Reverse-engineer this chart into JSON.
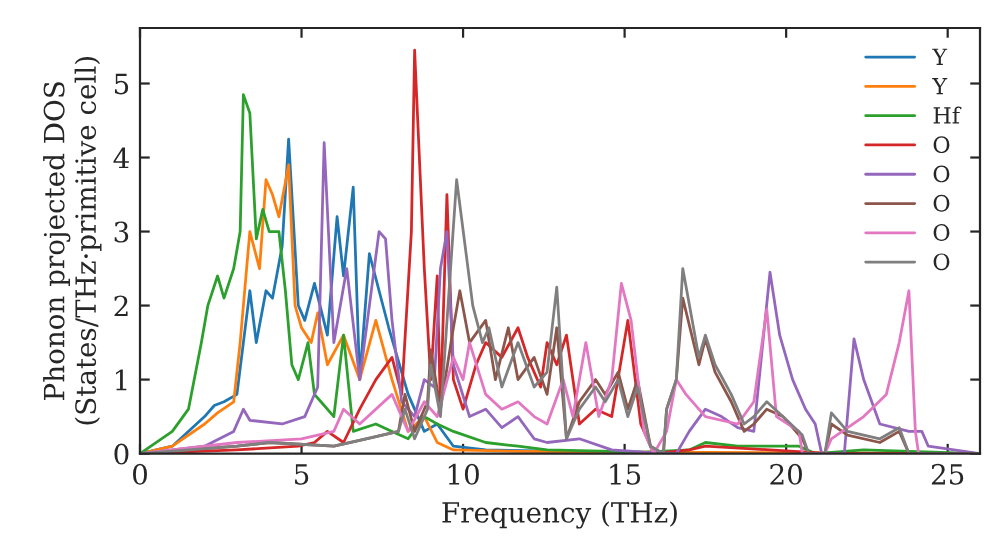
{
  "chart_data": {
    "type": "line",
    "xlabel": "Frequency (THz)",
    "ylabel": "Phonon projected DOS\n(States/THz·primitive cell)",
    "xlim": [
      0,
      26
    ],
    "ylim": [
      0,
      5.75
    ],
    "xticks": [
      0,
      5,
      10,
      15,
      20,
      25
    ],
    "yticks": [
      0,
      1,
      2,
      3,
      4,
      5
    ],
    "grid": false,
    "legend": "top right",
    "marker": "none",
    "line_style": "solid",
    "series": [
      {
        "name": "Y",
        "color": "#1f77b4",
        "x": [
          0,
          1,
          2,
          2.3,
          2.6,
          3,
          3.2,
          3.4,
          3.6,
          3.9,
          4.1,
          4.4,
          4.6,
          4.9,
          5.1,
          5.4,
          5.8,
          6.1,
          6.3,
          6.6,
          6.8,
          7.1,
          7.4,
          7.7,
          8.3,
          8.8,
          9.2,
          9.7,
          10.7,
          14.6
        ],
        "values": [
          0,
          0.1,
          0.5,
          0.65,
          0.7,
          0.8,
          1.5,
          2.2,
          1.5,
          2.2,
          2.1,
          2.8,
          4.25,
          2.0,
          1.8,
          2.3,
          1.6,
          3.2,
          2.4,
          3.6,
          1.0,
          2.7,
          2.2,
          1.7,
          0.8,
          0.3,
          0.4,
          0.1,
          0.05,
          0.02
        ]
      },
      {
        "name": "Y",
        "color": "#ff7f0e",
        "x": [
          0,
          1,
          2,
          2.4,
          2.9,
          3.1,
          3.4,
          3.7,
          3.9,
          4.1,
          4.3,
          4.6,
          4.8,
          5.0,
          5.3,
          5.5,
          5.8,
          6.3,
          6.8,
          7.3,
          7.8,
          8.3,
          8.8,
          9.2,
          9.7,
          11.7,
          15.6,
          26
        ],
        "values": [
          0,
          0.1,
          0.4,
          0.55,
          0.7,
          1.5,
          3.0,
          2.5,
          3.7,
          3.5,
          3.2,
          3.9,
          2.0,
          1.7,
          1.5,
          1.9,
          1.2,
          1.6,
          1.0,
          1.8,
          1.0,
          0.3,
          0.5,
          0.15,
          0.05,
          0.03,
          0.02,
          0
        ]
      },
      {
        "name": "Hf",
        "color": "#2ca02c",
        "x": [
          0,
          1,
          1.5,
          1.9,
          2.1,
          2.4,
          2.6,
          2.9,
          3.1,
          3.2,
          3.4,
          3.6,
          3.8,
          4.0,
          4.3,
          4.5,
          4.7,
          4.9,
          5.2,
          5.4,
          5.6,
          6.0,
          6.3,
          6.6,
          7.3,
          7.8,
          8.3,
          8.8,
          9.2,
          9.7,
          10.7,
          11.7,
          12.6,
          15.6,
          17.0,
          17.5,
          18.5,
          19.5,
          20.4,
          20.9,
          22.4,
          26
        ],
        "values": [
          0,
          0.3,
          0.6,
          1.5,
          2.0,
          2.4,
          2.1,
          2.5,
          3.0,
          4.85,
          4.6,
          2.9,
          3.3,
          3.0,
          3.0,
          2.2,
          1.2,
          1.0,
          1.5,
          0.8,
          0.7,
          0.5,
          1.6,
          0.3,
          0.4,
          0.3,
          0.2,
          0.5,
          0.4,
          0.3,
          0.15,
          0.1,
          0.05,
          0.02,
          0.05,
          0.15,
          0.1,
          0.1,
          0.1,
          0,
          0.05,
          0
        ]
      },
      {
        "name": "O",
        "color": "#d62728",
        "x": [
          0,
          3,
          4.9,
          5.4,
          5.8,
          6.3,
          6.8,
          7.3,
          7.8,
          8.1,
          8.4,
          8.5,
          8.8,
          9.0,
          9.2,
          9.3,
          9.5,
          9.7,
          10.0,
          10.4,
          10.7,
          11.2,
          11.7,
          12.0,
          12.4,
          12.6,
          12.9,
          13.2,
          13.6,
          14.1,
          14.6,
          15.1,
          15.5,
          15.9,
          17.0,
          17.5,
          19.5,
          21.4,
          26
        ],
        "values": [
          0,
          0.05,
          0.1,
          0.15,
          0.3,
          0.15,
          0.6,
          1.0,
          1.3,
          0.8,
          3.0,
          5.45,
          2.5,
          1.0,
          2.4,
          0.6,
          3.5,
          1.0,
          0.6,
          1.2,
          1.5,
          1.3,
          1.7,
          1.3,
          0.9,
          1.5,
          1.2,
          1.6,
          0.4,
          0.6,
          0.5,
          1.8,
          0.4,
          0,
          0.05,
          0.1,
          0.05,
          0,
          0
        ]
      },
      {
        "name": "O",
        "color": "#9467bd",
        "x": [
          0,
          2,
          2.9,
          3.2,
          3.4,
          4.4,
          5.1,
          5.5,
          5.7,
          6.0,
          6.4,
          6.8,
          7.1,
          7.4,
          7.6,
          7.8,
          8.1,
          8.5,
          8.8,
          9.1,
          9.3,
          9.5,
          9.7,
          10.2,
          10.7,
          11.2,
          11.7,
          12.2,
          12.6,
          13.6,
          14.6,
          15.6,
          16.6,
          17.0,
          17.5,
          18.0,
          18.5,
          19.0,
          19.5,
          19.8,
          20.2,
          20.6,
          20.9,
          21.1,
          21.8,
          22.1,
          22.4,
          22.9,
          23.8,
          24.2,
          24.4,
          26
        ],
        "values": [
          0,
          0.1,
          0.3,
          0.6,
          0.45,
          0.4,
          0.5,
          0.9,
          4.2,
          1.5,
          2.5,
          1.0,
          2.0,
          3.0,
          2.9,
          1.8,
          0.7,
          0.5,
          1.0,
          0.9,
          2.5,
          3.0,
          1.2,
          0.5,
          0.6,
          0.35,
          0.5,
          0.2,
          0.15,
          0.2,
          0.05,
          0.02,
          0,
          0.3,
          0.6,
          0.5,
          0.35,
          0.3,
          2.45,
          1.6,
          1.0,
          0.6,
          0.4,
          0,
          0,
          1.55,
          1.0,
          0.4,
          0.3,
          0.3,
          0.1,
          0
        ]
      },
      {
        "name": "O",
        "color": "#8c564b",
        "x": [
          0,
          3,
          4,
          6,
          7,
          8,
          8.2,
          8.5,
          8.9,
          9.0,
          9.3,
          9.7,
          9.9,
          10.2,
          10.7,
          11.0,
          11.4,
          11.7,
          12.2,
          12.6,
          12.9,
          13.2,
          13.6,
          14.1,
          14.4,
          14.8,
          15.1,
          15.4,
          15.8,
          16.2,
          16.3,
          16.6,
          16.8,
          17.3,
          17.5,
          17.8,
          18.3,
          18.7,
          19.0,
          19.4,
          19.9,
          20.5,
          20.7,
          21.2,
          21.4,
          21.9,
          22.9,
          23.5,
          23.8,
          24.4,
          26
        ],
        "values": [
          0,
          0.1,
          0.15,
          0.1,
          0.2,
          0.3,
          0.8,
          0.3,
          0.7,
          1.4,
          0.6,
          1.7,
          2.2,
          1.5,
          1.8,
          1.0,
          1.7,
          1.0,
          1.3,
          0.8,
          1.7,
          0.2,
          0.7,
          1.0,
          0.8,
          1.1,
          0.6,
          1.0,
          0.1,
          0,
          0.6,
          1.0,
          2.1,
          1.2,
          1.55,
          1.1,
          0.7,
          0.3,
          0.4,
          0.6,
          0.5,
          0.2,
          0,
          0,
          0.4,
          0.25,
          0.15,
          0.3,
          0,
          0,
          0
        ]
      },
      {
        "name": "O",
        "color": "#e377c2",
        "x": [
          0,
          3,
          5,
          6,
          6.3,
          6.8,
          7.8,
          8.3,
          8.8,
          9.2,
          9.7,
          10.0,
          10.2,
          10.7,
          11.2,
          11.7,
          12.2,
          12.6,
          13.1,
          13.4,
          13.8,
          14.2,
          14.6,
          14.9,
          15.2,
          15.6,
          15.9,
          16.3,
          16.6,
          16.9,
          17.5,
          18.5,
          19.0,
          19.4,
          19.7,
          20.4,
          20.5,
          21.2,
          21.4,
          22.4,
          23.1,
          23.5,
          23.8,
          24.0,
          24.1,
          26
        ],
        "values": [
          0,
          0.15,
          0.2,
          0.3,
          0.6,
          0.4,
          0.8,
          0.3,
          0.7,
          0.5,
          1.3,
          1.0,
          1.5,
          0.8,
          0.6,
          0.7,
          0.5,
          0.4,
          1.0,
          0.5,
          1.5,
          0.5,
          1.0,
          2.3,
          1.8,
          0.3,
          0,
          0.3,
          1.0,
          0.8,
          0.5,
          0.4,
          0.7,
          1.95,
          0.5,
          0.3,
          0,
          0,
          0.2,
          0.5,
          0.8,
          1.5,
          2.2,
          0.3,
          0,
          0
        ]
      },
      {
        "name": "O",
        "color": "#7f7f7f",
        "x": [
          0,
          3,
          4,
          6,
          7,
          8,
          8.2,
          8.5,
          8.9,
          9.0,
          9.3,
          9.8,
          10.3,
          10.6,
          10.8,
          11.2,
          11.7,
          12.2,
          12.6,
          12.9,
          13.2,
          13.6,
          14.1,
          14.4,
          14.8,
          15.1,
          15.4,
          15.8,
          16.2,
          16.3,
          16.6,
          16.8,
          17.3,
          17.5,
          17.8,
          18.3,
          18.7,
          19.0,
          19.4,
          19.9,
          20.5,
          20.7,
          21.2,
          21.4,
          21.9,
          22.9,
          23.5,
          23.8,
          24.4,
          26
        ],
        "values": [
          0,
          0.1,
          0.15,
          0.1,
          0.2,
          0.3,
          0.6,
          0.2,
          0.6,
          1.2,
          0.5,
          3.7,
          2.0,
          1.5,
          1.7,
          0.9,
          1.5,
          0.9,
          1.1,
          2.25,
          0.2,
          0.6,
          0.9,
          0.7,
          1.0,
          0.5,
          0.9,
          0.1,
          0,
          0.6,
          1.0,
          2.5,
          1.3,
          1.6,
          1.2,
          0.8,
          0.4,
          0.5,
          0.7,
          0.5,
          0.25,
          0,
          0,
          0.55,
          0.3,
          0.2,
          0.35,
          0,
          0,
          0
        ]
      }
    ]
  }
}
